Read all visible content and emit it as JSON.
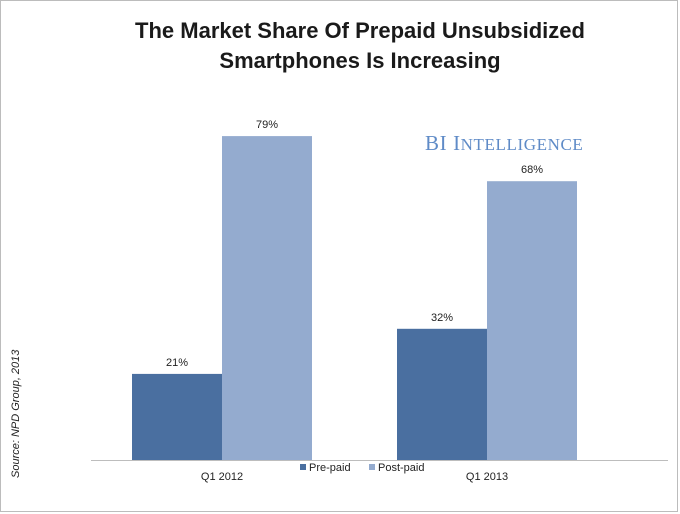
{
  "title_line1": "The Market Share Of Prepaid Unsubsidized",
  "title_line2": "Smartphones Is Increasing",
  "brand": {
    "first": "BI",
    "second_initial": "I",
    "second_rest": "NTELLIGENCE",
    "color": "#5f8bc7"
  },
  "source": "Source: NPD Group, 2013",
  "chart_data": {
    "type": "bar",
    "categories": [
      "Q1 2012",
      "Q1 2013"
    ],
    "series": [
      {
        "name": "Pre-paid",
        "values": [
          21,
          32
        ],
        "labels": [
          "21%",
          "32%"
        ],
        "color": "#4a6fa0"
      },
      {
        "name": "Post-paid",
        "values": [
          79,
          68
        ],
        "labels": [
          "79%",
          "68%"
        ],
        "color": "#94abcf"
      }
    ],
    "ylim": [
      0,
      100
    ],
    "grid": false,
    "legend": "bottom-center"
  }
}
